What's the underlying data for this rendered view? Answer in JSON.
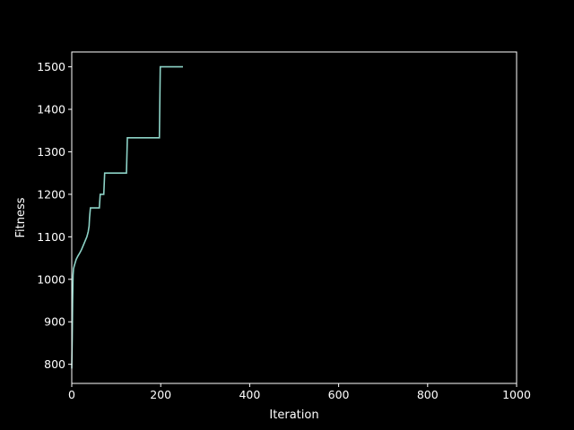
{
  "chart_data": {
    "type": "line",
    "title": "",
    "xlabel": "Iteration",
    "ylabel": "Fitness",
    "xlim": [
      0,
      1000
    ],
    "ylim": [
      755,
      1535
    ],
    "x_ticks": [
      0,
      200,
      400,
      600,
      800,
      1000
    ],
    "y_ticks": [
      800,
      900,
      1000,
      1100,
      1200,
      1300,
      1400,
      1500
    ],
    "grid": false,
    "legend": "none",
    "background_color": "#000000",
    "axis_color": "#ffffff",
    "series": [
      {
        "color": "#8dd3c7",
        "step": true,
        "x": [
          0,
          1,
          2,
          3,
          4,
          6,
          8,
          10,
          14,
          18,
          22,
          26,
          30,
          34,
          37,
          39,
          40,
          42,
          62,
          64,
          72,
          74,
          123,
          125,
          197,
          199,
          250
        ],
        "y": [
          790,
          860,
          950,
          1010,
          1025,
          1033,
          1040,
          1047,
          1055,
          1062,
          1070,
          1080,
          1090,
          1100,
          1112,
          1125,
          1145,
          1168,
          1168,
          1200,
          1200,
          1250,
          1250,
          1333,
          1333,
          1500,
          1500
        ]
      }
    ]
  }
}
